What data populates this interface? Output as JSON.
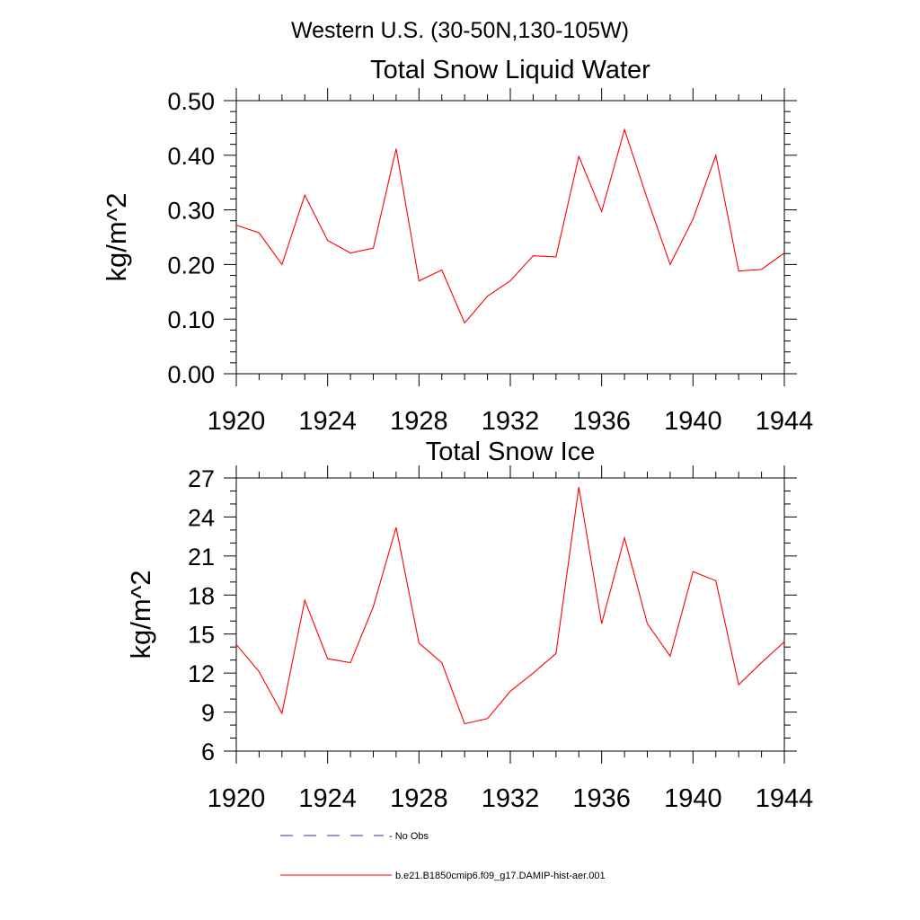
{
  "figure_title": "Western U.S. (30-50N,130-105W)",
  "colors": {
    "model": "#ff0000",
    "obs": "#2f2fb0",
    "axis": "#000000"
  },
  "chart_data": [
    {
      "type": "line",
      "title": "Total Snow Liquid Water",
      "xlabel": "",
      "ylabel": "kg/m^2",
      "xlim": [
        1920,
        1944
      ],
      "ylim": [
        0,
        0.5
      ],
      "x_ticks": [
        1920,
        1924,
        1928,
        1932,
        1936,
        1940,
        1944
      ],
      "x_tick_labels": [
        "1920",
        "1924",
        "1928",
        "1932",
        "1936",
        "1940",
        "1944"
      ],
      "y_ticks": [
        0,
        0.1,
        0.2,
        0.3,
        0.4,
        0.5
      ],
      "y_tick_labels": [
        "0.00",
        "0.10",
        "0.20",
        "0.30",
        "0.40",
        "0.50"
      ],
      "grid": false,
      "x": [
        1920,
        1921,
        1922,
        1923,
        1924,
        1925,
        1926,
        1927,
        1928,
        1929,
        1930,
        1931,
        1932,
        1933,
        1934,
        1935,
        1936,
        1937,
        1938,
        1939,
        1940,
        1941,
        1942,
        1943,
        1944
      ],
      "series": [
        {
          "name": "b.e21.B1850cmip6.f09_g17.DAMIP-hist-aer.001",
          "values": [
            0.272,
            0.258,
            0.2,
            0.327,
            0.244,
            0.221,
            0.23,
            0.412,
            0.17,
            0.19,
            0.093,
            0.142,
            0.17,
            0.216,
            0.214,
            0.398,
            0.297,
            0.447,
            0.32,
            0.2,
            0.283,
            0.4,
            0.188,
            0.191,
            0.221
          ]
        }
      ]
    },
    {
      "type": "line",
      "title": "Total Snow Ice",
      "xlabel": "",
      "ylabel": "kg/m^2",
      "xlim": [
        1920,
        1944
      ],
      "ylim": [
        6,
        27
      ],
      "x_ticks": [
        1920,
        1924,
        1928,
        1932,
        1936,
        1940,
        1944
      ],
      "x_tick_labels": [
        "1920",
        "1924",
        "1928",
        "1932",
        "1936",
        "1940",
        "1944"
      ],
      "y_ticks": [
        6,
        9,
        12,
        15,
        18,
        21,
        24,
        27
      ],
      "y_tick_labels": [
        "6",
        "9",
        "12",
        "15",
        "18",
        "21",
        "24",
        "27"
      ],
      "grid": false,
      "x": [
        1920,
        1921,
        1922,
        1923,
        1924,
        1925,
        1926,
        1927,
        1928,
        1929,
        1930,
        1931,
        1932,
        1933,
        1934,
        1935,
        1936,
        1937,
        1938,
        1939,
        1940,
        1941,
        1942,
        1943,
        1944
      ],
      "series": [
        {
          "name": "b.e21.B1850cmip6.f09_g17.DAMIP-hist-aer.001",
          "values": [
            14.2,
            12.1,
            8.9,
            17.6,
            13.1,
            12.8,
            17.1,
            23.2,
            14.3,
            12.8,
            8.1,
            8.5,
            10.6,
            12.0,
            13.5,
            26.3,
            15.8,
            22.4,
            15.8,
            13.3,
            19.8,
            19.1,
            11.1,
            12.8,
            14.4
          ]
        }
      ]
    }
  ],
  "legend": {
    "placement": "bottom",
    "entries": [
      {
        "label": "- No Obs",
        "style": "dashed",
        "color": "#2f2fb0"
      },
      {
        "label": "b.e21.B1850cmip6.f09_g17.DAMIP-hist-aer.001",
        "style": "solid",
        "color": "#ff0000"
      }
    ]
  }
}
